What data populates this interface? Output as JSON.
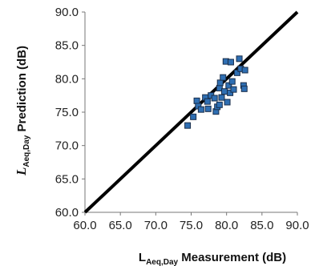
{
  "chart_data": {
    "type": "scatter",
    "xlim": [
      60,
      90
    ],
    "ylim": [
      60,
      90
    ],
    "x_ticks": [
      "60.0",
      "65.0",
      "70.0",
      "75.0",
      "80.0",
      "85.0",
      "90.0"
    ],
    "y_ticks": [
      "60.0",
      "65.0",
      "70.0",
      "75.0",
      "80.0",
      "85.0",
      "90.0"
    ],
    "xlabel": {
      "main": "L",
      "sub": "Aeq,Day",
      "rest": " Measurement (dB)"
    },
    "ylabel": {
      "main": "L",
      "sub": "Aeq,Day",
      "rest": " Prediction (dB)"
    },
    "reference_line": {
      "from": [
        60,
        60
      ],
      "to": [
        90,
        90
      ],
      "color": "#000000"
    },
    "marker_fill": "#2f6fb3",
    "marker_stroke": "#1a2e4a",
    "points": [
      {
        "x": 74.5,
        "y": 73.0
      },
      {
        "x": 75.3,
        "y": 74.3
      },
      {
        "x": 75.8,
        "y": 76.7
      },
      {
        "x": 76.0,
        "y": 75.9
      },
      {
        "x": 76.4,
        "y": 75.4
      },
      {
        "x": 77.0,
        "y": 77.2
      },
      {
        "x": 77.3,
        "y": 76.6
      },
      {
        "x": 77.4,
        "y": 75.5
      },
      {
        "x": 77.8,
        "y": 77.5
      },
      {
        "x": 78.3,
        "y": 77.1
      },
      {
        "x": 78.5,
        "y": 75.1
      },
      {
        "x": 78.7,
        "y": 75.8
      },
      {
        "x": 79.0,
        "y": 76.1
      },
      {
        "x": 79.0,
        "y": 78.6
      },
      {
        "x": 79.1,
        "y": 79.4
      },
      {
        "x": 79.3,
        "y": 77.2
      },
      {
        "x": 79.5,
        "y": 80.2
      },
      {
        "x": 79.7,
        "y": 78.1
      },
      {
        "x": 79.9,
        "y": 82.6
      },
      {
        "x": 80.1,
        "y": 76.5
      },
      {
        "x": 80.3,
        "y": 79.0
      },
      {
        "x": 80.5,
        "y": 77.9
      },
      {
        "x": 80.6,
        "y": 82.5
      },
      {
        "x": 80.8,
        "y": 79.6
      },
      {
        "x": 81.0,
        "y": 78.4
      },
      {
        "x": 81.5,
        "y": 80.9
      },
      {
        "x": 81.8,
        "y": 83.0
      },
      {
        "x": 82.0,
        "y": 81.5
      },
      {
        "x": 82.4,
        "y": 79.0
      },
      {
        "x": 82.5,
        "y": 78.5
      },
      {
        "x": 82.6,
        "y": 81.3
      }
    ]
  }
}
